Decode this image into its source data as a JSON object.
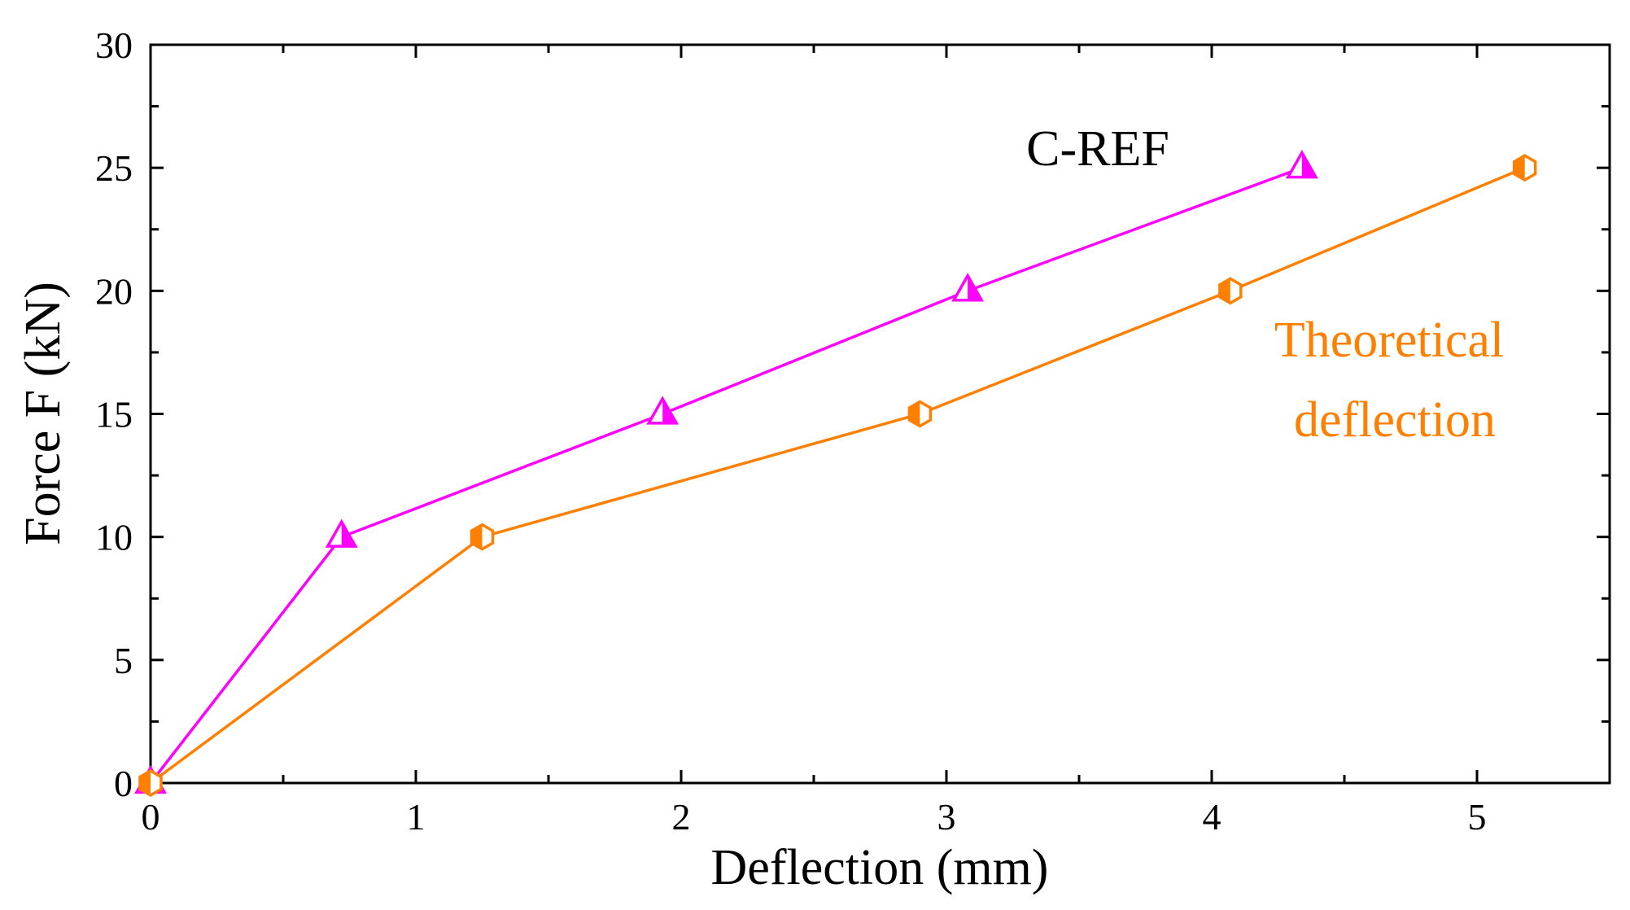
{
  "chart_data": {
    "type": "line",
    "title": "",
    "xlabel": "Deflection (mm)",
    "ylabel": "Force F (kN)",
    "xlim": [
      0,
      5.5
    ],
    "ylim": [
      0,
      30
    ],
    "xticks": [
      0,
      1,
      2,
      3,
      4,
      5
    ],
    "xtick_labels": [
      "0",
      "1",
      "2",
      "3",
      "4",
      "5"
    ],
    "yticks": [
      0,
      5,
      10,
      15,
      20,
      25,
      30
    ],
    "ytick_labels": [
      "0",
      "5",
      "10",
      "15",
      "20",
      "25",
      "30"
    ],
    "grid": false,
    "series": [
      {
        "name": "C-REF",
        "color": "#ff00ff",
        "marker": "half-filled-triangle",
        "x": [
          0.0,
          0.72,
          1.93,
          3.08,
          4.34
        ],
        "y": [
          0,
          10,
          15,
          20,
          25
        ]
      },
      {
        "name": "Theoretical deflection",
        "color": "#ff8000",
        "marker": "half-filled-hexagon",
        "x": [
          0.0,
          1.25,
          2.9,
          4.07,
          5.18
        ],
        "y": [
          0,
          10,
          15,
          20,
          25
        ]
      }
    ],
    "annotations": [
      {
        "text": "C-REF",
        "color": "#000000",
        "series": "C-REF"
      },
      {
        "text": "Theoretical",
        "color": "#ff8000",
        "series": "Theoretical deflection"
      },
      {
        "text": "deflection",
        "color": "#ff8000",
        "series": "Theoretical deflection"
      }
    ]
  }
}
